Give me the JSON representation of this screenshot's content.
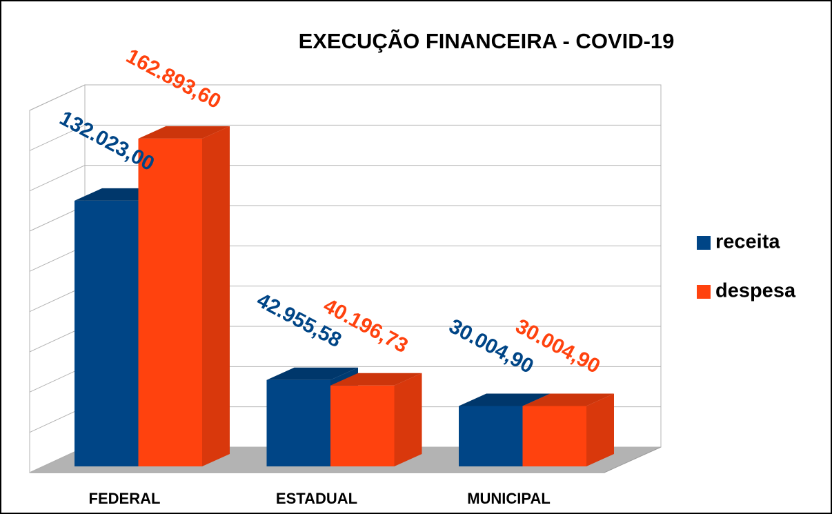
{
  "chart_data": {
    "type": "bar3d",
    "title": "EXECUÇÃO FINANCEIRA - COVID-19",
    "categories": [
      "FEDERAL",
      "ESTADUAL",
      "MUNICIPAL"
    ],
    "series": [
      {
        "name": "receita",
        "color": "#004586",
        "values": [
          132023.0,
          42955.58,
          30004.9
        ],
        "value_labels": [
          "132.023,00",
          "42.955,58",
          "30.004,90"
        ]
      },
      {
        "name": "despesa",
        "color": "#ff420e",
        "values": [
          162893.6,
          40196.73,
          30004.9
        ],
        "value_labels": [
          "162.893,60",
          "40.196,73",
          "30.004,90"
        ]
      }
    ],
    "ylim": [
      0,
      180000
    ],
    "yticks": [
      0,
      20000,
      40000,
      60000,
      80000,
      100000,
      120000,
      140000,
      160000,
      180000
    ],
    "grid": true,
    "legend": "right"
  }
}
